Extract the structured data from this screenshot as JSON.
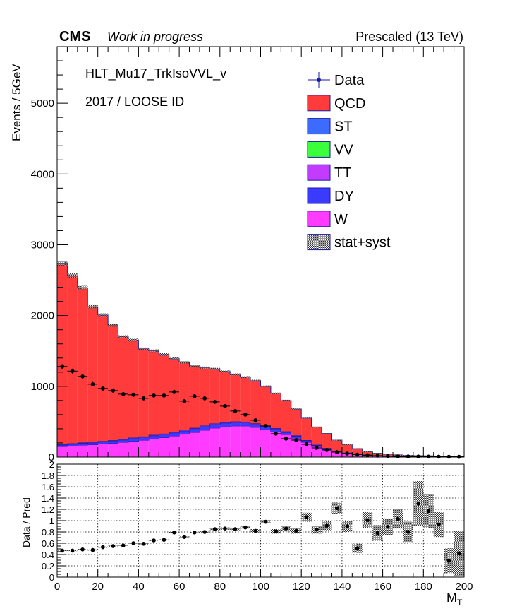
{
  "header": {
    "experiment": "CMS",
    "status": "Work in progress",
    "lumi": "Prescaled (13 TeV)"
  },
  "annotations": {
    "trigger": "HLT_Mu17_TrkIsoVVL_v",
    "selection": "2017 / LOOSE ID"
  },
  "colors": {
    "QCD": "#ff3b3b",
    "ST": "#3b6cff",
    "VV": "#3bff3b",
    "TT": "#c23bff",
    "DY": "#3b3bff",
    "W": "#ff3bff",
    "data": "#000000",
    "band": "#9a9a9a"
  },
  "chart_data": [
    {
      "type": "bar",
      "subtype": "stacked-histogram",
      "xlabel": "",
      "ylabel": "Events / 5GeV",
      "xlim": [
        0,
        200
      ],
      "ylim": [
        0,
        5800
      ],
      "yticks": [
        0,
        1000,
        2000,
        3000,
        4000,
        5000
      ],
      "bin_width": 5,
      "bin_edges_start": 0,
      "legend_position": "top-right",
      "legend": [
        "Data",
        "QCD",
        "ST",
        "VV",
        "TT",
        "DY",
        "W",
        "stat+syst"
      ],
      "series": [
        {
          "name": "W",
          "values": [
            150,
            160,
            170,
            175,
            185,
            195,
            210,
            225,
            240,
            260,
            275,
            300,
            325,
            350,
            380,
            410,
            430,
            440,
            440,
            420,
            390,
            360,
            320,
            270,
            210,
            150,
            110,
            75,
            50,
            35,
            25,
            18,
            13,
            10,
            8,
            6,
            5,
            4,
            3,
            2
          ]
        },
        {
          "name": "DY",
          "values": [
            20,
            22,
            24,
            26,
            28,
            30,
            32,
            34,
            36,
            38,
            40,
            42,
            44,
            46,
            48,
            48,
            47,
            46,
            44,
            41,
            38,
            34,
            30,
            25,
            20,
            16,
            12,
            9,
            7,
            5,
            4,
            3,
            2,
            2,
            1,
            1,
            1,
            1,
            1,
            1
          ]
        },
        {
          "name": "TT",
          "values": [
            6,
            6,
            6,
            7,
            7,
            7,
            8,
            8,
            8,
            9,
            9,
            9,
            10,
            10,
            10,
            10,
            10,
            10,
            9,
            9,
            8,
            8,
            7,
            6,
            5,
            4,
            3,
            3,
            2,
            2,
            2,
            1,
            1,
            1,
            1,
            1,
            1,
            1,
            1,
            1
          ]
        },
        {
          "name": "VV",
          "values": [
            2,
            2,
            2,
            2,
            2,
            2,
            2,
            2,
            2,
            2,
            2,
            2,
            2,
            2,
            2,
            2,
            2,
            2,
            2,
            2,
            2,
            2,
            2,
            1,
            1,
            1,
            1,
            1,
            1,
            1,
            1,
            1,
            1,
            1,
            1,
            1,
            1,
            1,
            1,
            1
          ]
        },
        {
          "name": "ST",
          "values": [
            4,
            4,
            4,
            4,
            4,
            4,
            4,
            5,
            5,
            5,
            5,
            5,
            5,
            5,
            5,
            5,
            5,
            5,
            5,
            5,
            5,
            4,
            4,
            4,
            3,
            3,
            2,
            2,
            2,
            1,
            1,
            1,
            1,
            1,
            1,
            1,
            1,
            1,
            1,
            1
          ]
        },
        {
          "name": "QCD",
          "values": [
            2550,
            2370,
            2185,
            1908,
            1780,
            1627,
            1445,
            1380,
            1239,
            1189,
            1119,
            1032,
            954,
            874,
            820,
            771,
            716,
            665,
            630,
            603,
            557,
            492,
            437,
            374,
            311,
            251,
            206,
            150,
            118,
            76,
            47,
            30,
            22,
            16,
            12,
            10,
            8,
            7,
            6,
            5
          ]
        }
      ],
      "data_points": [
        1280,
        1215,
        1140,
        1030,
        970,
        940,
        890,
        880,
        830,
        870,
        870,
        920,
        790,
        860,
        830,
        780,
        720,
        650,
        600,
        520,
        440,
        330,
        260,
        240,
        180,
        130,
        100,
        70,
        50,
        35,
        27,
        20,
        14,
        11,
        9,
        8,
        7,
        6,
        5,
        4
      ],
      "band_relative_error": 0.012
    },
    {
      "type": "scatter",
      "subtype": "ratio-panel",
      "xlabel": "M_T",
      "ylabel": "Data / Pred",
      "xlim": [
        0,
        200
      ],
      "ylim": [
        0,
        2
      ],
      "xticks": [
        0,
        20,
        40,
        60,
        80,
        100,
        120,
        140,
        160,
        180,
        200
      ],
      "yticks": [
        0,
        0.2,
        0.4,
        0.6,
        0.8,
        1,
        1.2,
        1.4,
        1.6,
        1.8,
        2
      ],
      "grid": true,
      "reference_line": 1,
      "x": [
        2.5,
        7.5,
        12.5,
        17.5,
        22.5,
        27.5,
        32.5,
        37.5,
        42.5,
        47.5,
        52.5,
        57.5,
        62.5,
        67.5,
        72.5,
        77.5,
        82.5,
        87.5,
        92.5,
        97.5,
        102.5,
        107.5,
        112.5,
        117.5,
        122.5,
        127.5,
        132.5,
        137.5,
        142.5,
        147.5,
        152.5,
        157.5,
        162.5,
        167.5,
        172.5,
        177.5,
        182.5,
        187.5,
        192.5,
        197.5
      ],
      "values": [
        0.47,
        0.47,
        0.49,
        0.48,
        0.53,
        0.55,
        0.56,
        0.6,
        0.59,
        0.65,
        0.66,
        0.79,
        0.71,
        0.79,
        0.8,
        0.85,
        0.86,
        0.85,
        0.88,
        0.82,
        0.98,
        0.81,
        0.86,
        0.82,
        1.06,
        0.84,
        0.91,
        1.22,
        0.9,
        0.51,
        1.01,
        0.78,
        0.89,
        1.03,
        0.8,
        1.3,
        1.17,
        0.93,
        0.29,
        0.42
      ],
      "errors": [
        0.01,
        0.01,
        0.01,
        0.01,
        0.01,
        0.01,
        0.01,
        0.01,
        0.01,
        0.01,
        0.01,
        0.01,
        0.01,
        0.01,
        0.01,
        0.02,
        0.02,
        0.02,
        0.02,
        0.03,
        0.03,
        0.04,
        0.05,
        0.05,
        0.08,
        0.07,
        0.08,
        0.1,
        0.1,
        0.08,
        0.14,
        0.14,
        0.15,
        0.17,
        0.18,
        0.4,
        0.3,
        0.22,
        0.22,
        0.4
      ]
    }
  ]
}
